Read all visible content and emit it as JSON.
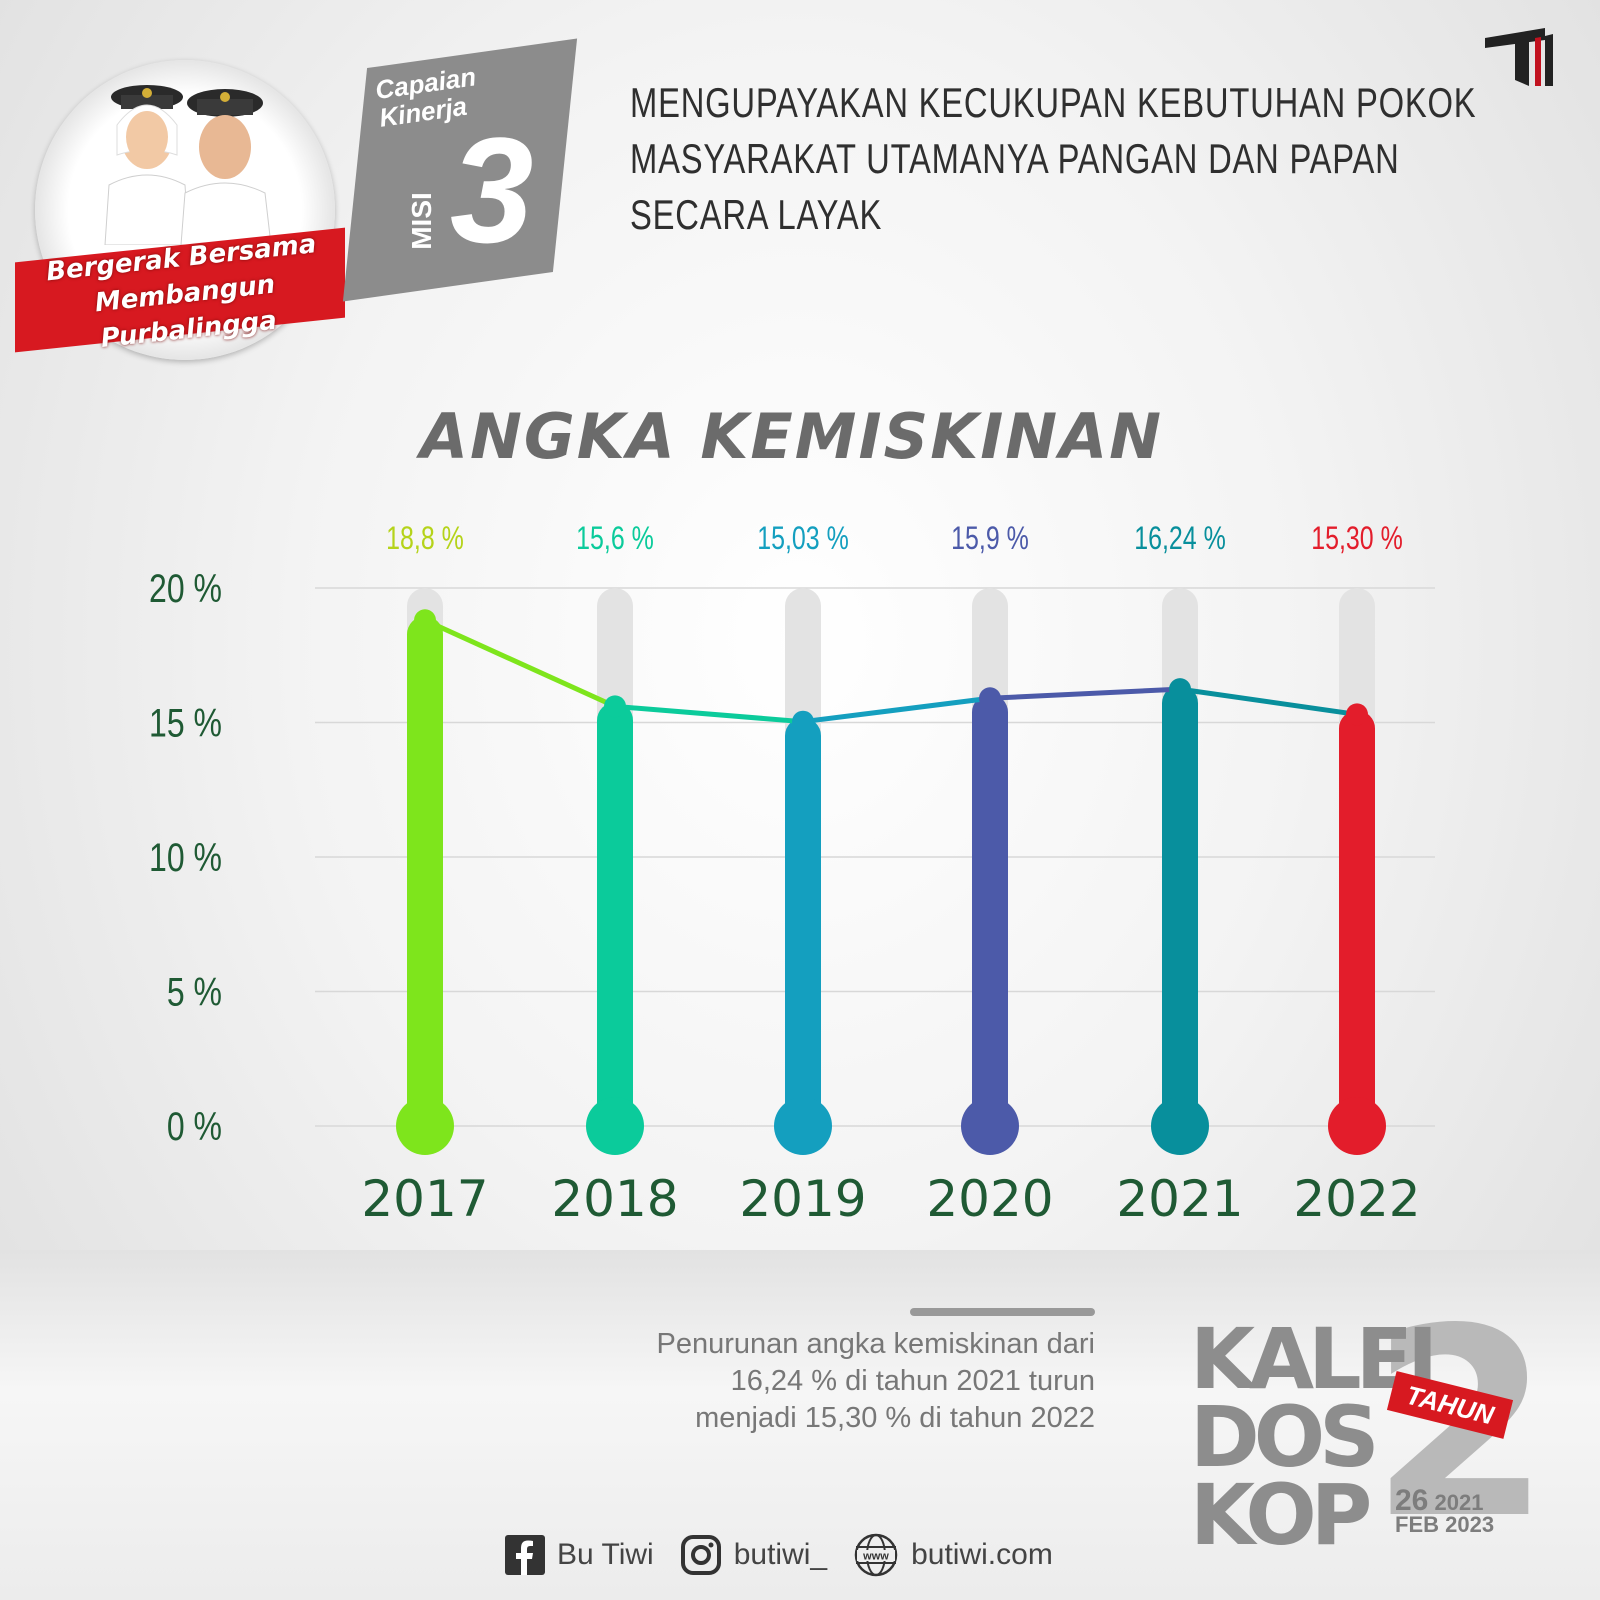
{
  "emblem": {
    "slogan_line1": "Bergerak Bersama",
    "slogan_line2": "Membangun Purbalingga"
  },
  "misi": {
    "caption_line1": "Capaian",
    "caption_line2": "Kinerja",
    "label": "MISI",
    "number": "3"
  },
  "header": {
    "line1": "MENGUPAYAKAN KECUKUPAN  KEBUTUHAN POKOK",
    "line2": "MASYARAKAT UTAMANYA PANGAN DAN PAPAN",
    "line3": "SECARA LAYAK"
  },
  "chart_data": {
    "type": "bar",
    "title": "ANGKA KEMISKINAN",
    "categories": [
      "2017",
      "2018",
      "2019",
      "2020",
      "2021",
      "2022"
    ],
    "values": [
      18.8,
      15.6,
      15.03,
      15.9,
      16.24,
      15.3
    ],
    "value_labels": [
      "18,8 %",
      "15,6 %",
      "15,03 %",
      "15,9 %",
      "16,24 %",
      "15,30 %"
    ],
    "colors": [
      "#7ee51c",
      "#0bcb9b",
      "#149fbf",
      "#4c5aa9",
      "#088f9c",
      "#e31d2b"
    ],
    "yticks": [
      0,
      5,
      10,
      15,
      20
    ],
    "ytick_labels": [
      "0 %",
      "5 %",
      "10 %",
      "15 %",
      "20 %"
    ],
    "ylim": [
      0,
      20
    ],
    "grid": true,
    "line_overlay": true
  },
  "note": {
    "line1": "Penurunan angka kemiskinan dari",
    "line2": "16,24 % di tahun 2021 turun",
    "line3": "menjadi 15,30 % di tahun 2022"
  },
  "socials": {
    "facebook": "Bu Tiwi",
    "instagram": "butiwi_",
    "website": "butiwi.com",
    "www_icon_text": "www"
  },
  "kaleidoskop": {
    "line1": "KALEI",
    "line2": "DOS",
    "line3": "KOP",
    "big_number": "2",
    "ribbon": "TAHUN",
    "date_day": "26",
    "date_month": "FEB",
    "year1": "2021",
    "year2": "2023"
  }
}
